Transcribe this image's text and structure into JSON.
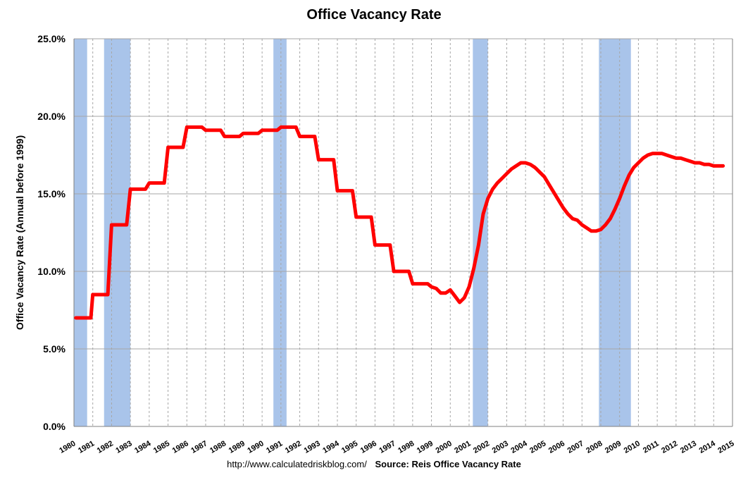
{
  "chart_data": {
    "type": "line",
    "title": "Office Vacancy Rate",
    "ylabel": "Office Vacancy Rate (Annual before 1999)",
    "xlabel": "",
    "ylim": [
      0,
      25
    ],
    "xlim": [
      1980,
      2015
    ],
    "y_ticks": [
      "0.0%",
      "5.0%",
      "10.0%",
      "15.0%",
      "20.0%",
      "25.0%"
    ],
    "x_ticks": [
      "1980",
      "1981",
      "1982",
      "1983",
      "1984",
      "1985",
      "1986",
      "1987",
      "1988",
      "1989",
      "1990",
      "1991",
      "1992",
      "1993",
      "1994",
      "1995",
      "1996",
      "1997",
      "1998",
      "1999",
      "2000",
      "2001",
      "2002",
      "2003",
      "2004",
      "2005",
      "2006",
      "2007",
      "2008",
      "2009",
      "2010",
      "2011",
      "2012",
      "2013",
      "2014",
      "2015"
    ],
    "grid": {
      "horizontal": true,
      "vertical": "dashed"
    },
    "recessions": [
      [
        1980.0,
        1980.7
      ],
      [
        1981.6,
        1983.0
      ],
      [
        1990.6,
        1991.3
      ],
      [
        2001.2,
        2002.0
      ],
      [
        2007.9,
        2009.6
      ]
    ],
    "series": [
      {
        "color": "#ff0000",
        "points": [
          [
            1980.1,
            7.0
          ],
          [
            1980.9,
            7.0
          ],
          [
            1981.0,
            8.5
          ],
          [
            1981.8,
            8.5
          ],
          [
            1982.0,
            13.0
          ],
          [
            1982.8,
            13.0
          ],
          [
            1983.0,
            15.3
          ],
          [
            1983.8,
            15.3
          ],
          [
            1984.0,
            15.7
          ],
          [
            1984.8,
            15.7
          ],
          [
            1985.0,
            18.0
          ],
          [
            1985.8,
            18.0
          ],
          [
            1986.0,
            19.3
          ],
          [
            1986.8,
            19.3
          ],
          [
            1987.0,
            19.1
          ],
          [
            1987.8,
            19.1
          ],
          [
            1988.0,
            18.7
          ],
          [
            1988.8,
            18.7
          ],
          [
            1989.0,
            18.9
          ],
          [
            1989.8,
            18.9
          ],
          [
            1990.0,
            19.1
          ],
          [
            1990.8,
            19.1
          ],
          [
            1991.0,
            19.3
          ],
          [
            1991.8,
            19.3
          ],
          [
            1992.0,
            18.7
          ],
          [
            1992.8,
            18.7
          ],
          [
            1993.0,
            17.2
          ],
          [
            1993.8,
            17.2
          ],
          [
            1994.0,
            15.2
          ],
          [
            1994.8,
            15.2
          ],
          [
            1995.0,
            13.5
          ],
          [
            1995.8,
            13.5
          ],
          [
            1996.0,
            11.7
          ],
          [
            1996.8,
            11.7
          ],
          [
            1997.0,
            10.0
          ],
          [
            1997.8,
            10.0
          ],
          [
            1998.0,
            9.2
          ],
          [
            1998.8,
            9.2
          ],
          [
            1999.0,
            9.0
          ],
          [
            1999.25,
            8.9
          ],
          [
            1999.5,
            8.6
          ],
          [
            1999.75,
            8.6
          ],
          [
            2000.0,
            8.8
          ],
          [
            2000.25,
            8.4
          ],
          [
            2000.5,
            8.0
          ],
          [
            2000.75,
            8.3
          ],
          [
            2001.0,
            9.0
          ],
          [
            2001.25,
            10.2
          ],
          [
            2001.5,
            11.7
          ],
          [
            2001.75,
            13.7
          ],
          [
            2002.0,
            14.7
          ],
          [
            2002.25,
            15.3
          ],
          [
            2002.5,
            15.7
          ],
          [
            2002.75,
            16.0
          ],
          [
            2003.0,
            16.3
          ],
          [
            2003.25,
            16.6
          ],
          [
            2003.5,
            16.8
          ],
          [
            2003.75,
            17.0
          ],
          [
            2004.0,
            17.0
          ],
          [
            2004.25,
            16.9
          ],
          [
            2004.5,
            16.7
          ],
          [
            2004.75,
            16.4
          ],
          [
            2005.0,
            16.1
          ],
          [
            2005.25,
            15.6
          ],
          [
            2005.5,
            15.1
          ],
          [
            2005.75,
            14.6
          ],
          [
            2006.0,
            14.1
          ],
          [
            2006.25,
            13.7
          ],
          [
            2006.5,
            13.4
          ],
          [
            2006.75,
            13.3
          ],
          [
            2007.0,
            13.0
          ],
          [
            2007.25,
            12.8
          ],
          [
            2007.5,
            12.6
          ],
          [
            2007.75,
            12.6
          ],
          [
            2008.0,
            12.7
          ],
          [
            2008.25,
            13.0
          ],
          [
            2008.5,
            13.4
          ],
          [
            2008.75,
            14.0
          ],
          [
            2009.0,
            14.7
          ],
          [
            2009.25,
            15.5
          ],
          [
            2009.5,
            16.2
          ],
          [
            2009.75,
            16.7
          ],
          [
            2010.0,
            17.0
          ],
          [
            2010.25,
            17.3
          ],
          [
            2010.5,
            17.5
          ],
          [
            2010.75,
            17.6
          ],
          [
            2011.0,
            17.6
          ],
          [
            2011.25,
            17.6
          ],
          [
            2011.5,
            17.5
          ],
          [
            2011.75,
            17.4
          ],
          [
            2012.0,
            17.3
          ],
          [
            2012.25,
            17.3
          ],
          [
            2012.5,
            17.2
          ],
          [
            2012.75,
            17.1
          ],
          [
            2013.0,
            17.0
          ],
          [
            2013.25,
            17.0
          ],
          [
            2013.5,
            16.9
          ],
          [
            2013.75,
            16.9
          ],
          [
            2014.0,
            16.8
          ],
          [
            2014.25,
            16.8
          ],
          [
            2014.5,
            16.8
          ]
        ]
      }
    ]
  },
  "footer": {
    "url": "http://www.calculatedriskblog.com/",
    "source": "Source: Reis Office Vacancy Rate"
  },
  "colors": {
    "line": "#ff0000",
    "recession": "#a9c4ea",
    "grid": "#a6a6a6"
  }
}
